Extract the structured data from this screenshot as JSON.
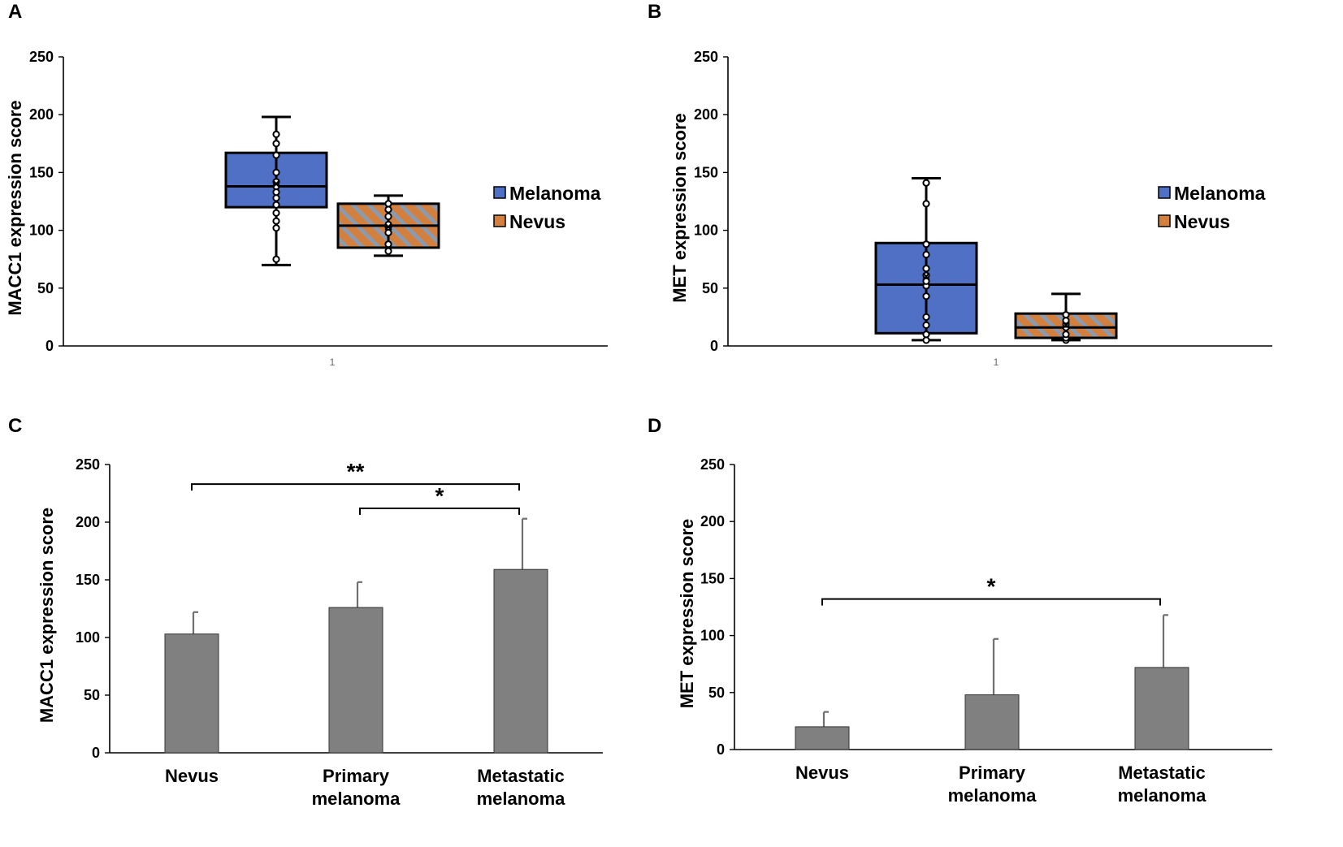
{
  "colors": {
    "melanoma": "#4f70c4",
    "nevus": "#d3803f",
    "hatch": "#8d9aae",
    "bar": "#808080",
    "axis": "#000000"
  },
  "chart_data": [
    {
      "panel": "A",
      "type": "box",
      "ylabel": "MACC1 expression score",
      "ylim": [
        0,
        250
      ],
      "yticks": [
        0,
        50,
        100,
        150,
        200,
        250
      ],
      "x_category": "1",
      "series": [
        {
          "name": "Melanoma",
          "min": 70,
          "q1": 120,
          "median": 138,
          "mean": 140,
          "q3": 167,
          "max": 198,
          "points": [
            75,
            102,
            108,
            115,
            122,
            128,
            133,
            138,
            142,
            150,
            165,
            175,
            183
          ]
        },
        {
          "name": "Nevus",
          "min": 78,
          "q1": 85,
          "median": 104,
          "mean": 103,
          "q3": 123,
          "max": 130,
          "points": [
            82,
            88,
            98,
            103,
            105,
            112,
            118,
            123
          ]
        }
      ],
      "legend": [
        "Melanoma",
        "Nevus"
      ]
    },
    {
      "panel": "B",
      "type": "box",
      "ylabel": "MET expression score",
      "ylim": [
        0,
        250
      ],
      "yticks": [
        0,
        50,
        100,
        150,
        200,
        250
      ],
      "x_category": "1",
      "series": [
        {
          "name": "Melanoma",
          "min": 5,
          "q1": 11,
          "median": 53,
          "mean": 60,
          "q3": 89,
          "max": 145,
          "points": [
            5,
            10,
            18,
            25,
            43,
            52,
            56,
            61,
            67,
            79,
            88,
            123,
            141
          ]
        },
        {
          "name": "Nevus",
          "min": 5,
          "q1": 7,
          "median": 16,
          "mean": 18,
          "q3": 28,
          "max": 45,
          "points": [
            5,
            7,
            10,
            16,
            19,
            22,
            27
          ]
        }
      ],
      "legend": [
        "Melanoma",
        "Nevus"
      ]
    },
    {
      "panel": "C",
      "type": "bar",
      "ylabel": "MACC1 expression score",
      "ylim": [
        0,
        250
      ],
      "yticks": [
        0,
        50,
        100,
        150,
        200,
        250
      ],
      "categories": [
        [
          "Nevus"
        ],
        [
          "Primary",
          "melanoma"
        ],
        [
          "Metastatic",
          "melanoma"
        ]
      ],
      "values": [
        103,
        126,
        159
      ],
      "errors": [
        19,
        22,
        44
      ],
      "significance": [
        {
          "from": 0,
          "to": 2,
          "level": 233,
          "label": "**"
        },
        {
          "from": 1,
          "to": 2,
          "level": 212,
          "label": "*"
        }
      ]
    },
    {
      "panel": "D",
      "type": "bar",
      "ylabel": "MET expression score",
      "ylim": [
        0,
        250
      ],
      "yticks": [
        0,
        50,
        100,
        150,
        200,
        250
      ],
      "categories": [
        [
          "Nevus"
        ],
        [
          "Primary",
          "melanoma"
        ],
        [
          "Metastatic",
          "melanoma"
        ]
      ],
      "values": [
        20,
        48,
        72
      ],
      "errors": [
        13,
        49,
        46
      ],
      "significance": [
        {
          "from": 0,
          "to": 2,
          "level": 132,
          "label": "*"
        }
      ]
    }
  ]
}
